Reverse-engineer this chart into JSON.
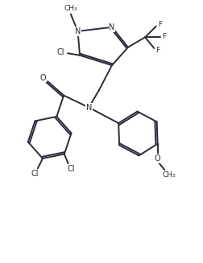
{
  "figsize": [
    2.53,
    3.27
  ],
  "dpi": 100,
  "background": "#ffffff",
  "line_color": "#2a2a3a",
  "line_width": 1.4,
  "font_size": 7.0,
  "font_color": "#2a2a3a",
  "xlim": [
    0,
    10
  ],
  "ylim": [
    0,
    13
  ]
}
